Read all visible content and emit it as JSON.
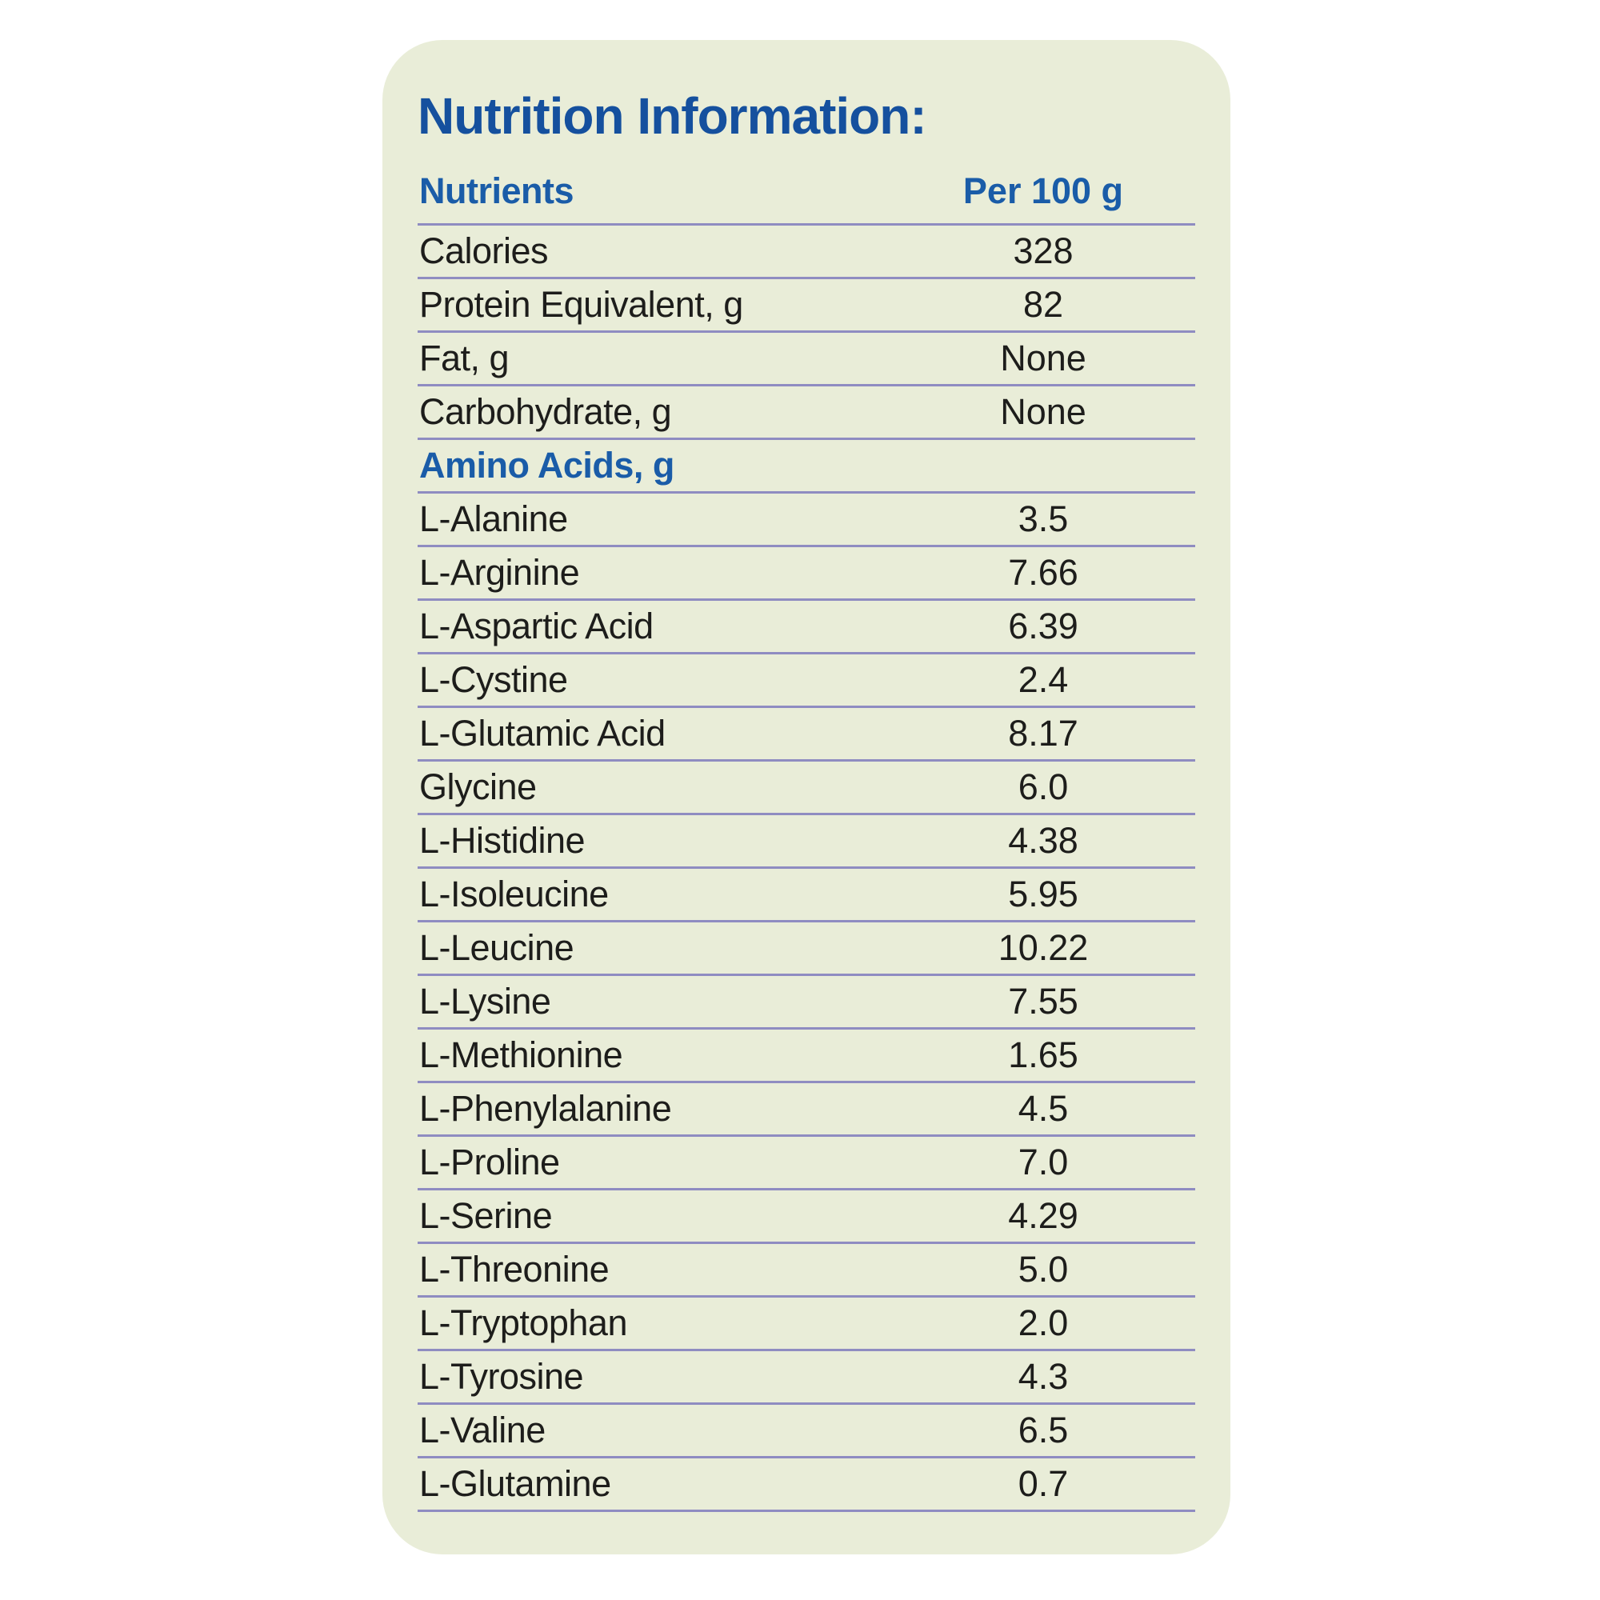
{
  "title": "Nutrition Information:",
  "colors": {
    "page_bg": "#ffffff",
    "card_bg": "#e9edd8",
    "title_blue": "#15509e",
    "header_blue": "#1a5ca8",
    "separator": "#8f8cc1",
    "text_dark": "#1d1d1b"
  },
  "table": {
    "columns": [
      "Nutrients",
      "Per 100 g"
    ],
    "rows": [
      {
        "type": "data",
        "label": "Calories",
        "value": "328"
      },
      {
        "type": "data",
        "label": "Protein Equivalent, g",
        "value": "82"
      },
      {
        "type": "data",
        "label": "Fat, g",
        "value": "None"
      },
      {
        "type": "data",
        "label": "Carbohydrate, g",
        "value": "None"
      },
      {
        "type": "section",
        "label": "Amino Acids, g",
        "value": ""
      },
      {
        "type": "data",
        "label": "L-Alanine",
        "value": "3.5"
      },
      {
        "type": "data",
        "label": "L-Arginine",
        "value": "7.66"
      },
      {
        "type": "data",
        "label": "L-Aspartic Acid",
        "value": "6.39"
      },
      {
        "type": "data",
        "label": "L-Cystine",
        "value": "2.4"
      },
      {
        "type": "data",
        "label": "L-Glutamic Acid",
        "value": "8.17"
      },
      {
        "type": "data",
        "label": "Glycine",
        "value": "6.0"
      },
      {
        "type": "data",
        "label": "L-Histidine",
        "value": "4.38"
      },
      {
        "type": "data",
        "label": "L-Isoleucine",
        "value": "5.95"
      },
      {
        "type": "data",
        "label": "L-Leucine",
        "value": "10.22"
      },
      {
        "type": "data",
        "label": "L-Lysine",
        "value": "7.55"
      },
      {
        "type": "data",
        "label": "L-Methionine",
        "value": "1.65"
      },
      {
        "type": "data",
        "label": "L-Phenylalanine",
        "value": "4.5"
      },
      {
        "type": "data",
        "label": "L-Proline",
        "value": "7.0"
      },
      {
        "type": "data",
        "label": "L-Serine",
        "value": "4.29"
      },
      {
        "type": "data",
        "label": "L-Threonine",
        "value": "5.0"
      },
      {
        "type": "data",
        "label": "L-Tryptophan",
        "value": "2.0"
      },
      {
        "type": "data",
        "label": "L-Tyrosine",
        "value": "4.3"
      },
      {
        "type": "data",
        "label": "L-Valine",
        "value": "6.5"
      },
      {
        "type": "data",
        "label": "L-Glutamine",
        "value": "0.7"
      }
    ]
  }
}
